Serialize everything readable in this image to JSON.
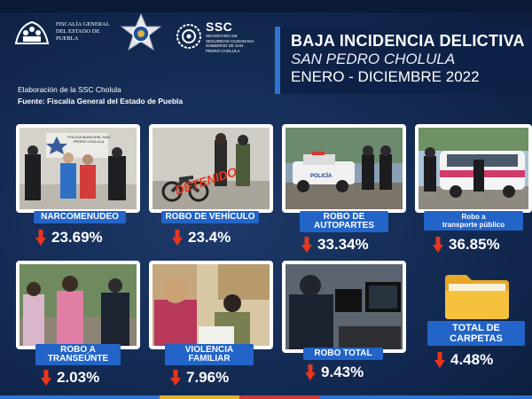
{
  "header": {
    "fge_logo_text": "FISCALÍA GENERAL DEL ESTADO DE PUEBLA",
    "ssc_title": "SSC",
    "ssc_subtitle": "SECRETARÍA DE SEGURIDAD CIUDADANA GOBIERNO DE SAN PEDRO CHOLULA",
    "title_line1": "BAJA INCIDENCIA DELICTIVA",
    "title_line2": "SAN PEDRO CHOLULA",
    "title_line3": "ENERO - DICIEMBRE 2022",
    "credit_line1": "Elaboración de la SSC Cholula",
    "credit_line2": "Fuente: Fiscalía General del Estado de Puebla"
  },
  "cards": [
    {
      "label": "NARCOMENUDEO",
      "value": "23.69%",
      "photo_sign": "POLICÍA MUNICIPAL SAN PEDRO CHOLULA",
      "icon": "arrow-down-icon"
    },
    {
      "label": "ROBO DE VEHÍCULO",
      "value": "23.4%",
      "photo_stamp": "DETENIDO",
      "icon": "arrow-down-icon"
    },
    {
      "label_l1": "ROBO DE",
      "label_l2": "AUTOPARTES",
      "value": "33.34%",
      "photo_sign": "POLICÍA",
      "icon": "arrow-down-icon"
    },
    {
      "label_l1": "Robo a",
      "label_l2": "transporte público",
      "value": "36.85%",
      "icon": "arrow-down-icon"
    },
    {
      "label_l1": "ROBO A",
      "label_l2": "TRANSEÚNTE",
      "value": "2.03%",
      "icon": "arrow-down-icon"
    },
    {
      "label_l1": "VIOLENCIA",
      "label_l2": "FAMILIAR",
      "value": "7.96%",
      "icon": "arrow-down-icon"
    },
    {
      "label": "ROBO TOTAL",
      "value": "9.43%",
      "icon": "arrow-down-icon"
    },
    {
      "label_l1": "TOTAL DE",
      "label_l2": "CARPETAS",
      "value": "4.48%",
      "icon": "folder-icon"
    }
  ],
  "colors": {
    "accent_blue": "#2264c8",
    "arrow_red": "#e7361e",
    "background": "#132a52"
  }
}
